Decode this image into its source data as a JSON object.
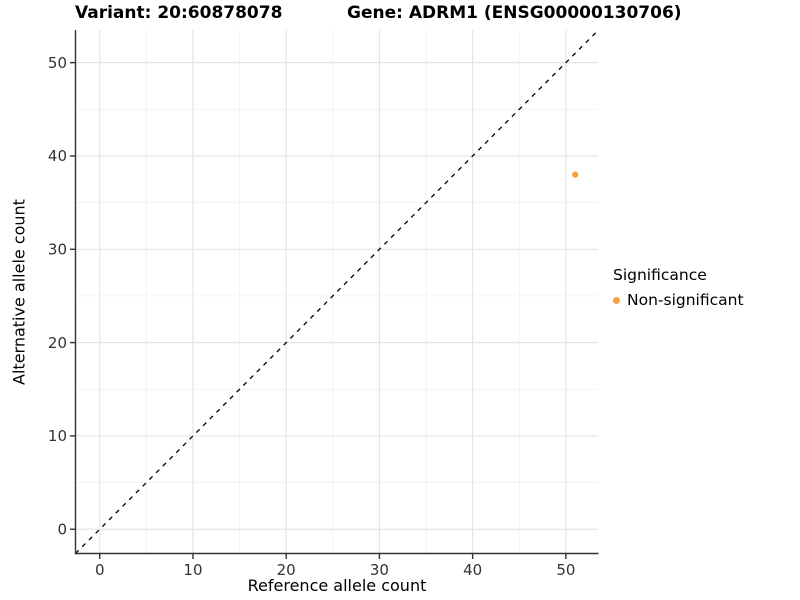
{
  "chart_data": {
    "type": "scatter",
    "titles": {
      "left": "Variant: 20:60878078",
      "right": "Gene: ADRM1 (ENSG00000130706)"
    },
    "xlabel": "Reference allele count",
    "ylabel": "Alternative allele count",
    "xlim": [
      -2.6,
      53.5
    ],
    "ylim": [
      -2.6,
      53.5
    ],
    "xticks": [
      0,
      10,
      20,
      30,
      40,
      50
    ],
    "yticks": [
      0,
      10,
      20,
      30,
      40,
      50
    ],
    "xticks_minor": [
      5,
      15,
      25,
      35,
      45
    ],
    "yticks_minor": [
      5,
      15,
      25,
      35,
      45
    ],
    "grid": true,
    "legend_position": "right",
    "series": [
      {
        "name": "Non-significant",
        "color": "#F9A03C",
        "points": [
          {
            "x": 51,
            "y": 38
          }
        ]
      }
    ],
    "identity_line": {
      "equation": "y = x",
      "style": "dashed",
      "color": "#000000"
    },
    "legend": {
      "title": "Significance",
      "items": [
        {
          "label": "Non-significant",
          "color": "#F9A03C"
        }
      ]
    }
  },
  "palette": {
    "background": "#FFFFFF",
    "grid_major": "#E5E5E5",
    "grid_minor": "#F1F1F1",
    "axis_line": "#333333",
    "tick_label": "#333333",
    "text": "#000000",
    "point": "#F9A03C",
    "identity_line": "#000000"
  }
}
